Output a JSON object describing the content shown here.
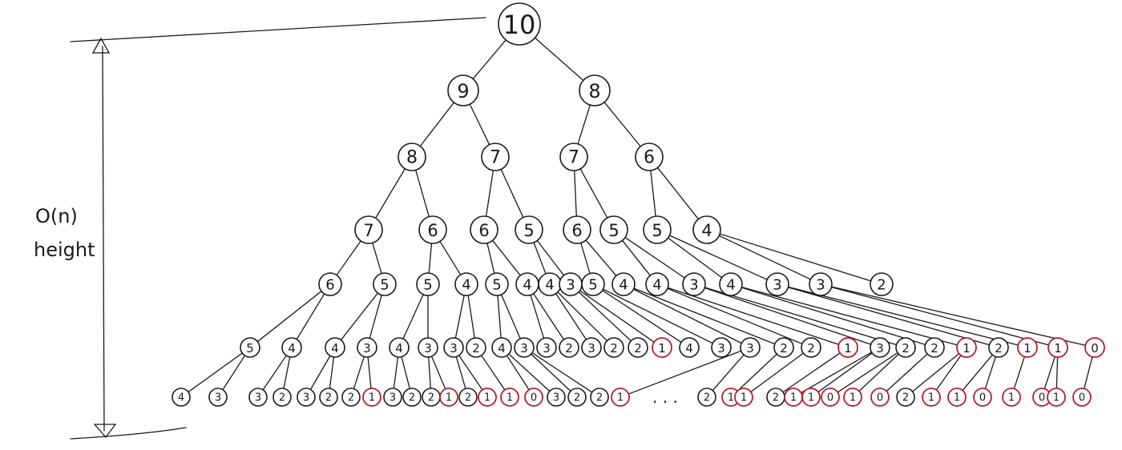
{
  "annotation": {
    "line1": "O(n)",
    "line2": "height"
  },
  "ellipsis": ". . .",
  "colors": {
    "ink": "#1a1a1a",
    "base_case": "#b3202a"
  },
  "tree": {
    "rows": [
      {
        "values": [
          "10"
        ]
      },
      {
        "values": [
          "9",
          "8"
        ]
      },
      {
        "values": [
          "8",
          "7",
          "7",
          "6"
        ]
      },
      {
        "values": [
          "7",
          "6",
          "6",
          "5",
          "6",
          "5",
          "5",
          "4"
        ]
      },
      {
        "values": [
          "6",
          "5",
          "5",
          "4",
          "5",
          "4",
          "4",
          "3",
          "5",
          "4",
          "4",
          "3",
          "4",
          "3",
          "3",
          "2"
        ]
      },
      {
        "values": [
          "5",
          "4",
          "4",
          "3",
          "4",
          "3",
          "3",
          "2",
          "4",
          "3",
          "3",
          "2",
          "3",
          "2",
          "2",
          "1",
          "4",
          "3",
          "3",
          "2",
          "2",
          "1",
          "3",
          "2",
          "2",
          "1",
          "2",
          "1",
          "1",
          "0"
        ],
        "base_case": [
          15,
          21,
          25,
          27,
          28,
          29
        ]
      },
      {
        "values": [
          "4",
          "3",
          "3",
          "2",
          "3",
          "2",
          "2",
          "1",
          "3",
          "2",
          "2",
          "1",
          "2",
          "1",
          "1",
          "0",
          "3",
          "2",
          "2",
          "1",
          "2",
          "1",
          "1",
          "2",
          "1",
          "1",
          "0",
          "1",
          "0",
          "2",
          "1",
          "1",
          "0",
          "1",
          "0",
          "1",
          "0"
        ],
        "base_case": [
          7,
          11,
          13,
          14,
          15,
          19,
          21,
          22,
          24,
          25,
          26,
          27,
          28,
          30,
          31,
          32,
          33,
          34,
          35,
          36
        ]
      }
    ]
  }
}
